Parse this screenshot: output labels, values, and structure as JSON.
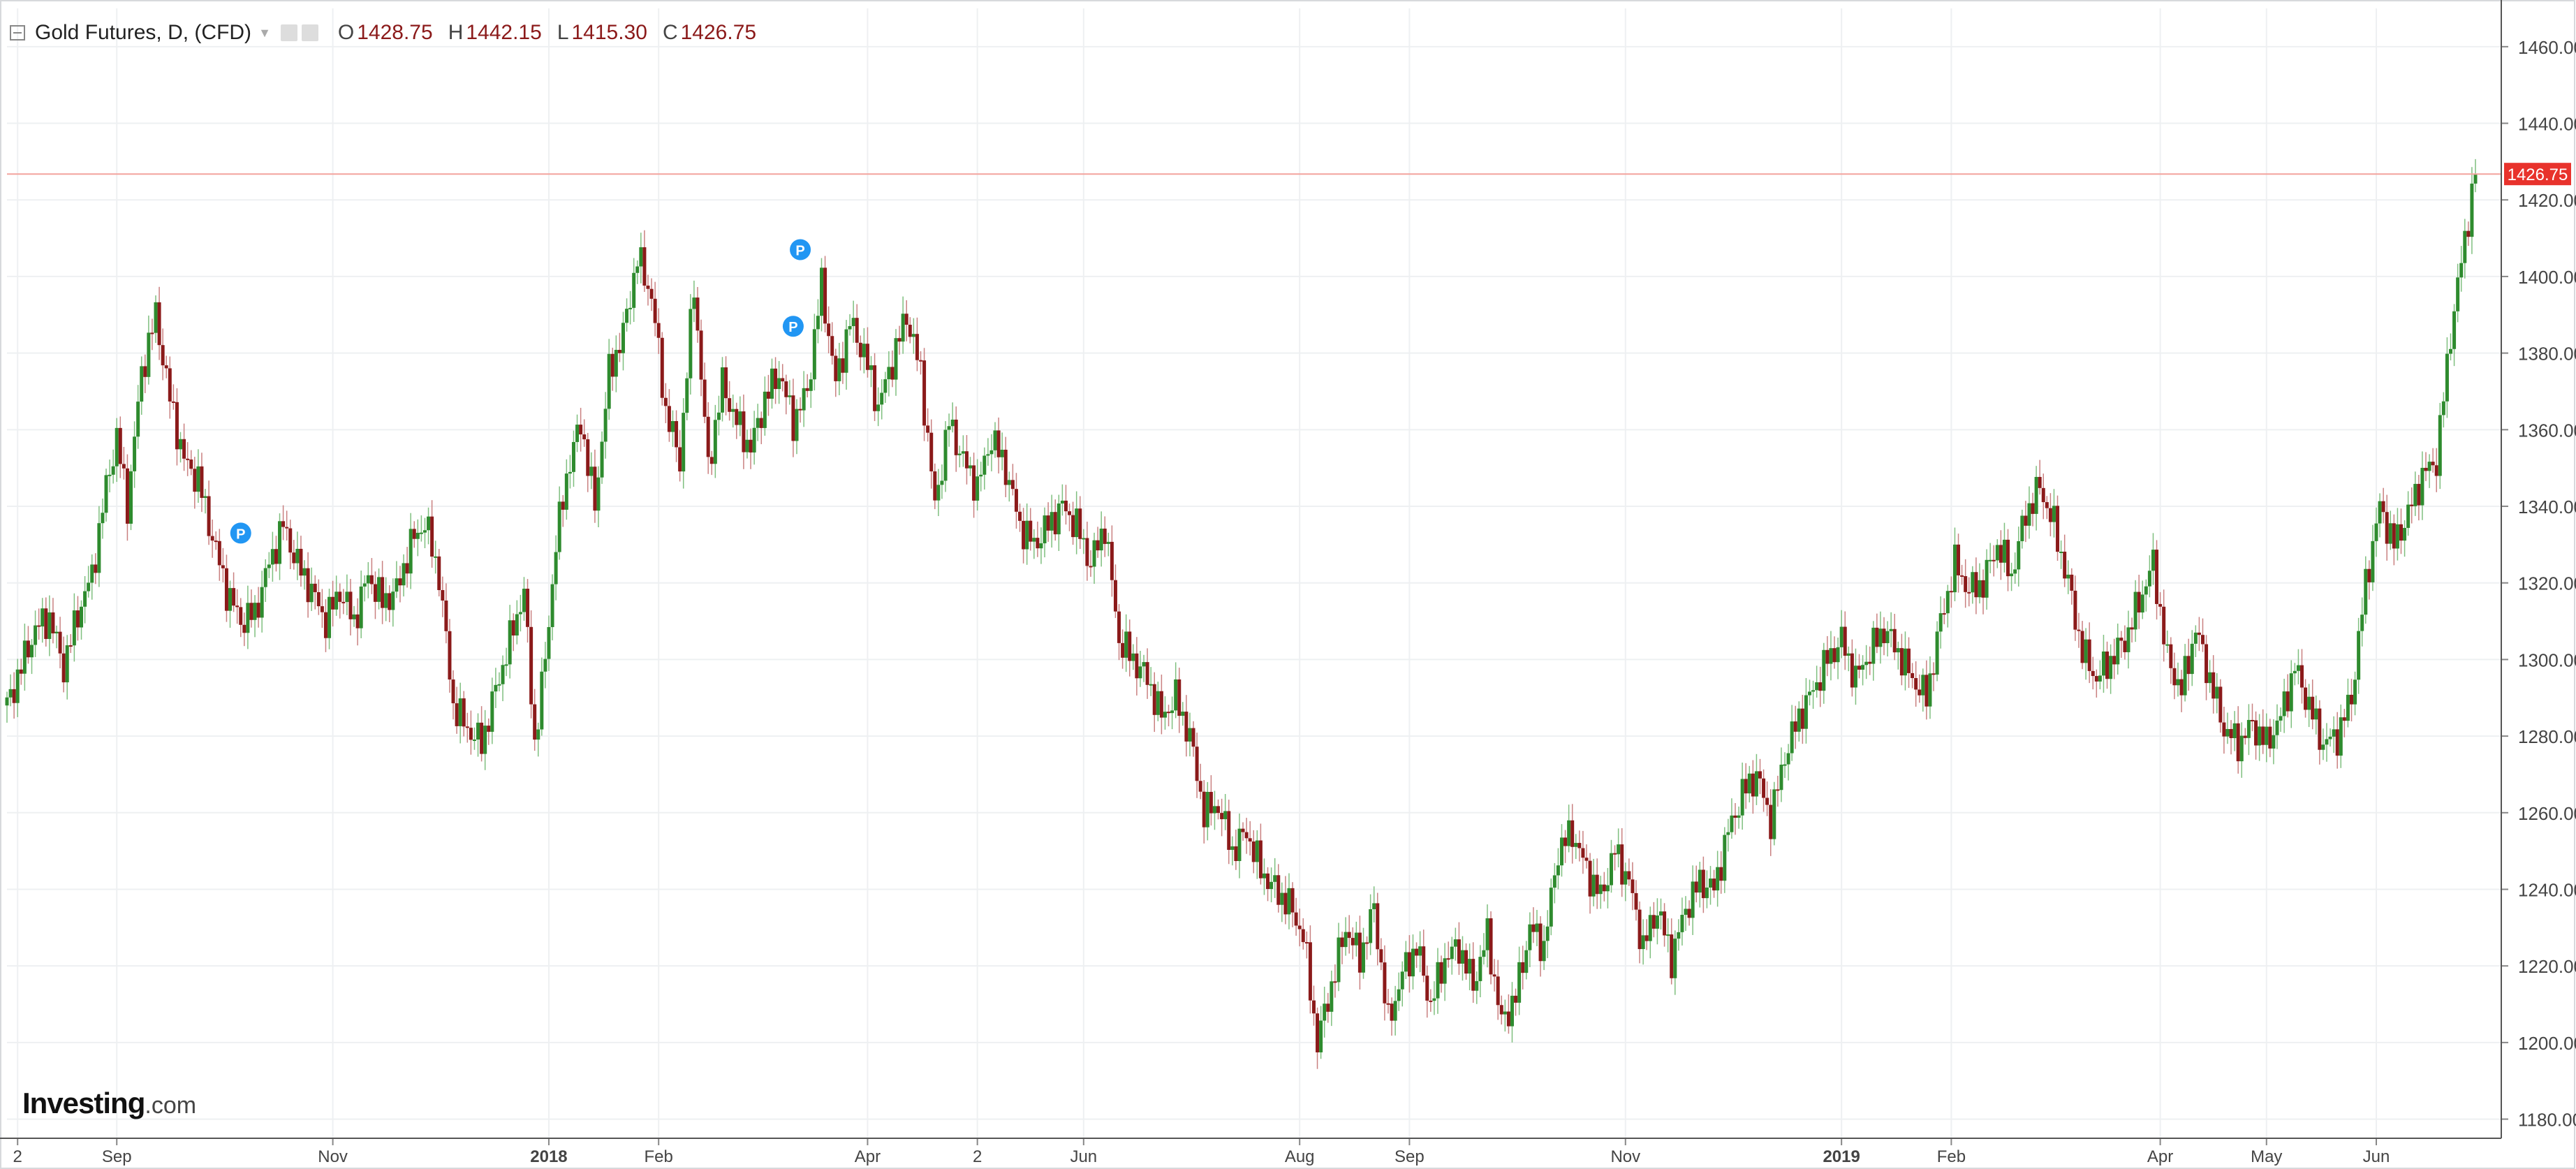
{
  "legend": {
    "title": "Gold Futures, D, (CFD)",
    "open_label": "O",
    "open_value": "1428.75",
    "high_label": "H",
    "high_value": "1442.15",
    "low_label": "L",
    "low_value": "1415.30",
    "close_label": "C",
    "close_value": "1426.75"
  },
  "logo": {
    "brand": "Investing",
    "suffix": ".com"
  },
  "price_badge": "1426.75",
  "colors": {
    "up": "#2e8b2e",
    "down": "#8b1a1a",
    "grid": "#eef0f2",
    "price_line": "#f3a39d",
    "badge": "#e8322c",
    "marker": "#2196f3"
  },
  "chart_data": {
    "type": "candlestick",
    "title": "Gold Futures, D, (CFD)",
    "ylim": [
      1175,
      1470
    ],
    "y_ticks": [
      "1180.00",
      "1200.00",
      "1220.00",
      "1240.00",
      "1260.00",
      "1280.00",
      "1300.00",
      "1320.00",
      "1340.00",
      "1360.00",
      "1380.00",
      "1400.00",
      "1420.00",
      "1440.00",
      "1460.00"
    ],
    "x_ticks": [
      {
        "label": "2",
        "t": 3,
        "bold": false
      },
      {
        "label": "Sep",
        "t": 31,
        "bold": false
      },
      {
        "label": "Nov",
        "t": 92,
        "bold": false
      },
      {
        "label": "2018",
        "t": 153,
        "bold": true
      },
      {
        "label": "Feb",
        "t": 184,
        "bold": false
      },
      {
        "label": "Apr",
        "t": 243,
        "bold": false
      },
      {
        "label": "2",
        "t": 274,
        "bold": false
      },
      {
        "label": "Jun",
        "t": 304,
        "bold": false
      },
      {
        "label": "Aug",
        "t": 365,
        "bold": false
      },
      {
        "label": "Sep",
        "t": 396,
        "bold": false
      },
      {
        "label": "Nov",
        "t": 457,
        "bold": false
      },
      {
        "label": "2019",
        "t": 518,
        "bold": true
      },
      {
        "label": "Feb",
        "t": 549,
        "bold": false
      },
      {
        "label": "Apr",
        "t": 608,
        "bold": false
      },
      {
        "label": "May",
        "t": 638,
        "bold": false
      },
      {
        "label": "Jun",
        "t": 669,
        "bold": false
      }
    ],
    "t_range": [
      0,
      697
    ],
    "series_close": [
      [
        0,
        1288
      ],
      [
        4,
        1298
      ],
      [
        8,
        1308
      ],
      [
        12,
        1311
      ],
      [
        16,
        1298
      ],
      [
        20,
        1312
      ],
      [
        24,
        1322
      ],
      [
        28,
        1345
      ],
      [
        31,
        1358
      ],
      [
        34,
        1340
      ],
      [
        38,
        1375
      ],
      [
        42,
        1390
      ],
      [
        46,
        1368
      ],
      [
        50,
        1352
      ],
      [
        54,
        1347
      ],
      [
        58,
        1332
      ],
      [
        62,
        1318
      ],
      [
        66,
        1310
      ],
      [
        70,
        1312
      ],
      [
        74,
        1325
      ],
      [
        78,
        1335
      ],
      [
        82,
        1325
      ],
      [
        86,
        1318
      ],
      [
        90,
        1310
      ],
      [
        94,
        1318
      ],
      [
        98,
        1310
      ],
      [
        102,
        1322
      ],
      [
        106,
        1315
      ],
      [
        110,
        1318
      ],
      [
        114,
        1330
      ],
      [
        118,
        1336
      ],
      [
        122,
        1322
      ],
      [
        126,
        1288
      ],
      [
        130,
        1282
      ],
      [
        134,
        1278
      ],
      [
        138,
        1292
      ],
      [
        142,
        1305
      ],
      [
        146,
        1318
      ],
      [
        149,
        1278
      ],
      [
        152,
        1300
      ],
      [
        155,
        1330
      ],
      [
        158,
        1348
      ],
      [
        162,
        1362
      ],
      [
        166,
        1340
      ],
      [
        170,
        1375
      ],
      [
        174,
        1385
      ],
      [
        178,
        1405
      ],
      [
        182,
        1395
      ],
      [
        186,
        1365
      ],
      [
        190,
        1352
      ],
      [
        194,
        1398
      ],
      [
        198,
        1350
      ],
      [
        202,
        1372
      ],
      [
        206,
        1362
      ],
      [
        210,
        1355
      ],
      [
        214,
        1368
      ],
      [
        218,
        1375
      ],
      [
        222,
        1362
      ],
      [
        226,
        1370
      ],
      [
        230,
        1398
      ],
      [
        234,
        1372
      ],
      [
        238,
        1388
      ],
      [
        242,
        1380
      ],
      [
        246,
        1366
      ],
      [
        250,
        1378
      ],
      [
        254,
        1390
      ],
      [
        258,
        1375
      ],
      [
        262,
        1340
      ],
      [
        266,
        1362
      ],
      [
        270,
        1352
      ],
      [
        274,
        1345
      ],
      [
        278,
        1358
      ],
      [
        282,
        1350
      ],
      [
        286,
        1335
      ],
      [
        290,
        1330
      ],
      [
        294,
        1335
      ],
      [
        298,
        1340
      ],
      [
        302,
        1335
      ],
      [
        306,
        1325
      ],
      [
        310,
        1335
      ],
      [
        314,
        1305
      ],
      [
        318,
        1300
      ],
      [
        322,
        1295
      ],
      [
        326,
        1285
      ],
      [
        330,
        1290
      ],
      [
        334,
        1280
      ],
      [
        338,
        1260
      ],
      [
        342,
        1262
      ],
      [
        346,
        1250
      ],
      [
        350,
        1255
      ],
      [
        354,
        1245
      ],
      [
        358,
        1240
      ],
      [
        362,
        1236
      ],
      [
        366,
        1228
      ],
      [
        370,
        1200
      ],
      [
        374,
        1215
      ],
      [
        378,
        1230
      ],
      [
        382,
        1222
      ],
      [
        386,
        1235
      ],
      [
        390,
        1205
      ],
      [
        394,
        1218
      ],
      [
        398,
        1225
      ],
      [
        402,
        1210
      ],
      [
        406,
        1222
      ],
      [
        410,
        1225
      ],
      [
        414,
        1215
      ],
      [
        418,
        1228
      ],
      [
        422,
        1205
      ],
      [
        426,
        1212
      ],
      [
        430,
        1230
      ],
      [
        434,
        1225
      ],
      [
        438,
        1250
      ],
      [
        442,
        1255
      ],
      [
        446,
        1245
      ],
      [
        450,
        1238
      ],
      [
        454,
        1250
      ],
      [
        458,
        1242
      ],
      [
        462,
        1225
      ],
      [
        466,
        1235
      ],
      [
        470,
        1222
      ],
      [
        474,
        1235
      ],
      [
        478,
        1242
      ],
      [
        482,
        1240
      ],
      [
        486,
        1255
      ],
      [
        490,
        1265
      ],
      [
        494,
        1270
      ],
      [
        498,
        1258
      ],
      [
        502,
        1275
      ],
      [
        506,
        1285
      ],
      [
        510,
        1292
      ],
      [
        514,
        1300
      ],
      [
        518,
        1305
      ],
      [
        522,
        1295
      ],
      [
        526,
        1302
      ],
      [
        530,
        1308
      ],
      [
        534,
        1302
      ],
      [
        538,
        1295
      ],
      [
        542,
        1290
      ],
      [
        546,
        1310
      ],
      [
        550,
        1325
      ],
      [
        554,
        1318
      ],
      [
        558,
        1320
      ],
      [
        562,
        1330
      ],
      [
        566,
        1322
      ],
      [
        570,
        1338
      ],
      [
        574,
        1345
      ],
      [
        578,
        1335
      ],
      [
        582,
        1320
      ],
      [
        586,
        1302
      ],
      [
        590,
        1295
      ],
      [
        594,
        1300
      ],
      [
        598,
        1305
      ],
      [
        602,
        1315
      ],
      [
        606,
        1325
      ],
      [
        610,
        1300
      ],
      [
        614,
        1292
      ],
      [
        618,
        1308
      ],
      [
        622,
        1295
      ],
      [
        626,
        1282
      ],
      [
        630,
        1278
      ],
      [
        634,
        1283
      ],
      [
        638,
        1278
      ],
      [
        642,
        1285
      ],
      [
        646,
        1298
      ],
      [
        650,
        1288
      ],
      [
        654,
        1278
      ],
      [
        658,
        1280
      ],
      [
        662,
        1290
      ],
      [
        666,
        1320
      ],
      [
        670,
        1340
      ],
      [
        674,
        1330
      ],
      [
        678,
        1338
      ],
      [
        682,
        1348
      ],
      [
        686,
        1352
      ],
      [
        690,
        1385
      ],
      [
        694,
        1410
      ],
      [
        697,
        1426.75
      ]
    ],
    "price_line": 1426.75,
    "markers": [
      {
        "label": "P",
        "t": 66,
        "y": 1333
      },
      {
        "label": "P",
        "t": 222,
        "y": 1387
      },
      {
        "label": "P",
        "t": 224,
        "y": 1407
      }
    ]
  }
}
